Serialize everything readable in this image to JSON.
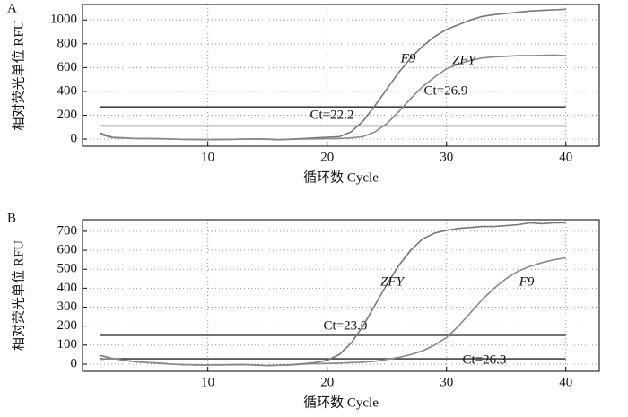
{
  "chart_data": [
    {
      "type": "line",
      "panel": "A",
      "x_label": "循环数 Cycle",
      "y_label": "相对荧光单位 RFU",
      "x": [
        1,
        2,
        3,
        4,
        5,
        6,
        7,
        8,
        9,
        10,
        11,
        12,
        13,
        14,
        15,
        16,
        17,
        18,
        19,
        20,
        21,
        22,
        23,
        24,
        25,
        26,
        27,
        28,
        29,
        30,
        31,
        32,
        33,
        34,
        35,
        36,
        37,
        38,
        39,
        40
      ],
      "series": [
        {
          "name": "F9",
          "color": "#777777",
          "values": [
            40,
            12,
            8,
            5,
            5,
            3,
            0,
            -3,
            -3,
            -5,
            -3,
            -2,
            0,
            2,
            0,
            -5,
            0,
            5,
            10,
            15,
            20,
            60,
            150,
            280,
            420,
            560,
            680,
            780,
            860,
            920,
            960,
            1000,
            1030,
            1045,
            1055,
            1065,
            1075,
            1080,
            1085,
            1090
          ]
        },
        {
          "name": "ZFY",
          "color": "#888888",
          "values": [
            50,
            15,
            10,
            5,
            3,
            2,
            0,
            -2,
            -4,
            -5,
            -4,
            -3,
            0,
            0,
            -2,
            -6,
            -2,
            0,
            2,
            3,
            5,
            10,
            20,
            60,
            130,
            230,
            340,
            440,
            520,
            590,
            630,
            660,
            680,
            690,
            695,
            700,
            700,
            702,
            705,
            700
          ]
        }
      ],
      "threshold_lines": [
        270,
        110
      ],
      "annotations": [
        "Ct=22.2",
        "Ct=26.9"
      ],
      "xlim": [
        -0.5,
        42.8
      ],
      "ylim": [
        -60,
        1130
      ],
      "xticks": [
        10,
        20,
        30,
        40
      ],
      "yticks": [
        0,
        200,
        400,
        600,
        800,
        1000
      ],
      "grid": true
    },
    {
      "type": "line",
      "panel": "B",
      "x_label": "循环数 Cycle",
      "y_label": "相对荧光单位 RFU",
      "x": [
        1,
        2,
        3,
        4,
        5,
        6,
        7,
        8,
        9,
        10,
        11,
        12,
        13,
        14,
        15,
        16,
        17,
        18,
        19,
        20,
        21,
        22,
        23,
        24,
        25,
        26,
        27,
        28,
        29,
        30,
        31,
        32,
        33,
        34,
        35,
        36,
        37,
        38,
        39,
        40
      ],
      "series": [
        {
          "name": "ZFY",
          "color": "#777777",
          "values": [
            45,
            30,
            20,
            12,
            8,
            5,
            0,
            -3,
            -5,
            -5,
            -4,
            -3,
            -2,
            -5,
            -8,
            -6,
            -3,
            2,
            8,
            20,
            50,
            110,
            200,
            310,
            420,
            520,
            600,
            660,
            690,
            705,
            715,
            720,
            725,
            725,
            730,
            735,
            745,
            740,
            745,
            745
          ]
        },
        {
          "name": "F9",
          "color": "#888888",
          "values": [
            25,
            30,
            20,
            12,
            8,
            4,
            0,
            -3,
            -4,
            -5,
            -4,
            -4,
            -3,
            -5,
            -7,
            -6,
            -5,
            0,
            2,
            3,
            5,
            8,
            10,
            15,
            25,
            35,
            50,
            70,
            100,
            140,
            200,
            270,
            340,
            400,
            450,
            490,
            515,
            535,
            550,
            560
          ]
        }
      ],
      "threshold_lines": [
        151,
        28
      ],
      "annotations": [
        "Ct=23.0",
        "Ct=26.3"
      ],
      "xlim": [
        -0.5,
        42.8
      ],
      "ylim": [
        -38,
        761
      ],
      "xticks": [
        10,
        20,
        30,
        40
      ],
      "yticks": [
        0,
        100,
        200,
        300,
        400,
        500,
        600,
        700
      ],
      "grid": true
    }
  ]
}
